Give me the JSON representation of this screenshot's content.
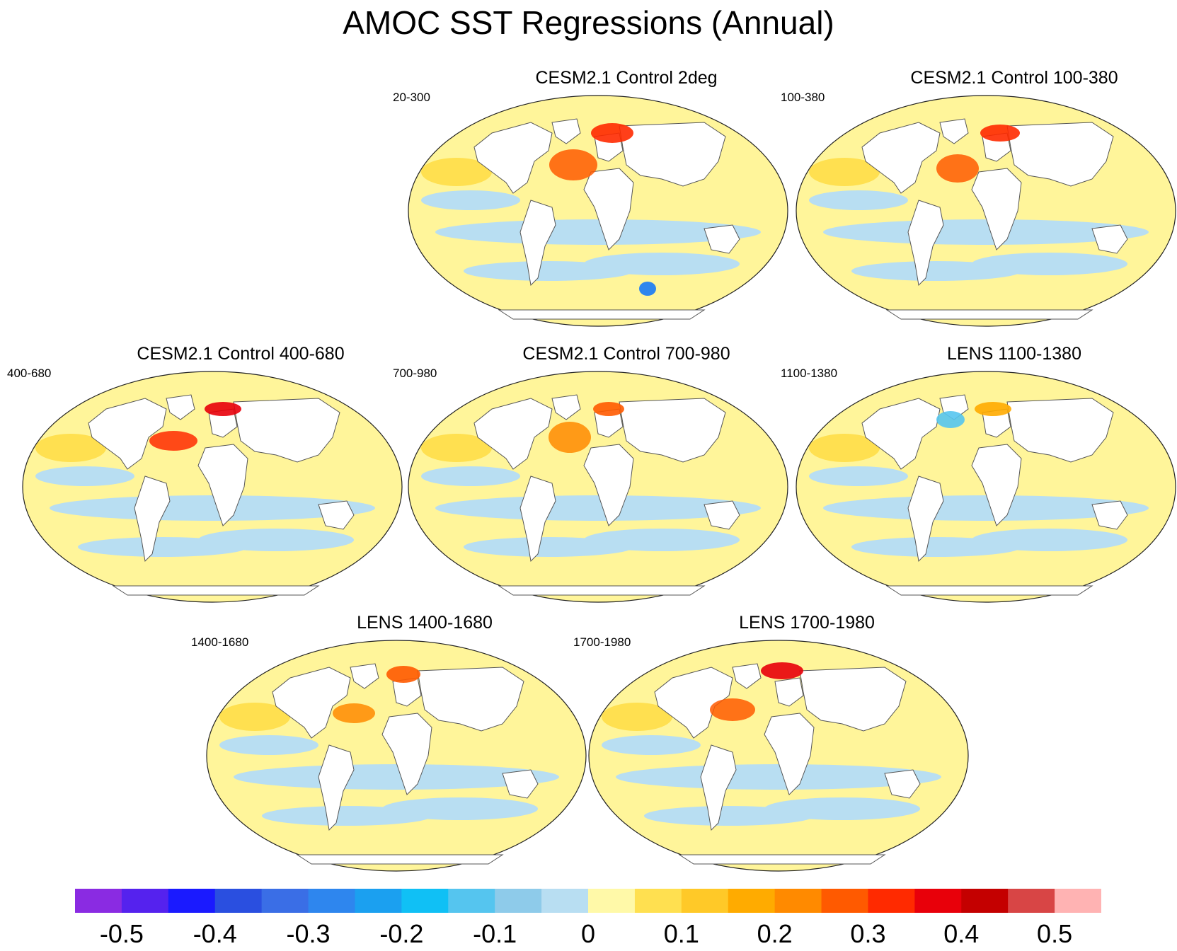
{
  "title": "AMOC SST Regressions (Annual)",
  "panels": [
    {
      "title": "CESM2.1 Control 2deg",
      "left": "20-300"
    },
    {
      "title": "CESM2.1 Control 100-380",
      "left": "100-380"
    },
    {
      "title": "CESM2.1 Control 400-680",
      "left": "400-680"
    },
    {
      "title": "CESM2.1 Control 700-980",
      "left": "700-980"
    },
    {
      "title": "LENS 1100-1380",
      "left": "1100-1380"
    },
    {
      "title": "LENS 1400-1680",
      "left": "1400-1680"
    },
    {
      "title": "LENS 1700-1980",
      "left": "1700-1980"
    }
  ],
  "colorbar": {
    "colors": [
      "#8a2be2",
      "#5522ee",
      "#1a1aff",
      "#2a4fe0",
      "#3a6ee6",
      "#2e86ee",
      "#1ba0f0",
      "#10c0f5",
      "#55c5ef",
      "#8ecbea",
      "#b8def2",
      "#fff9a8",
      "#ffe050",
      "#ffc928",
      "#ffab00",
      "#ff8a00",
      "#ff5a00",
      "#ff2a00",
      "#e8000a",
      "#c40000",
      "#d84545",
      "#ffb3b3"
    ],
    "labels": [
      "-0.5",
      "-0.4",
      "-0.3",
      "-0.2",
      "-0.1",
      "0",
      "0.1",
      "0.2",
      "0.3",
      "0.4",
      "0.5"
    ]
  }
}
